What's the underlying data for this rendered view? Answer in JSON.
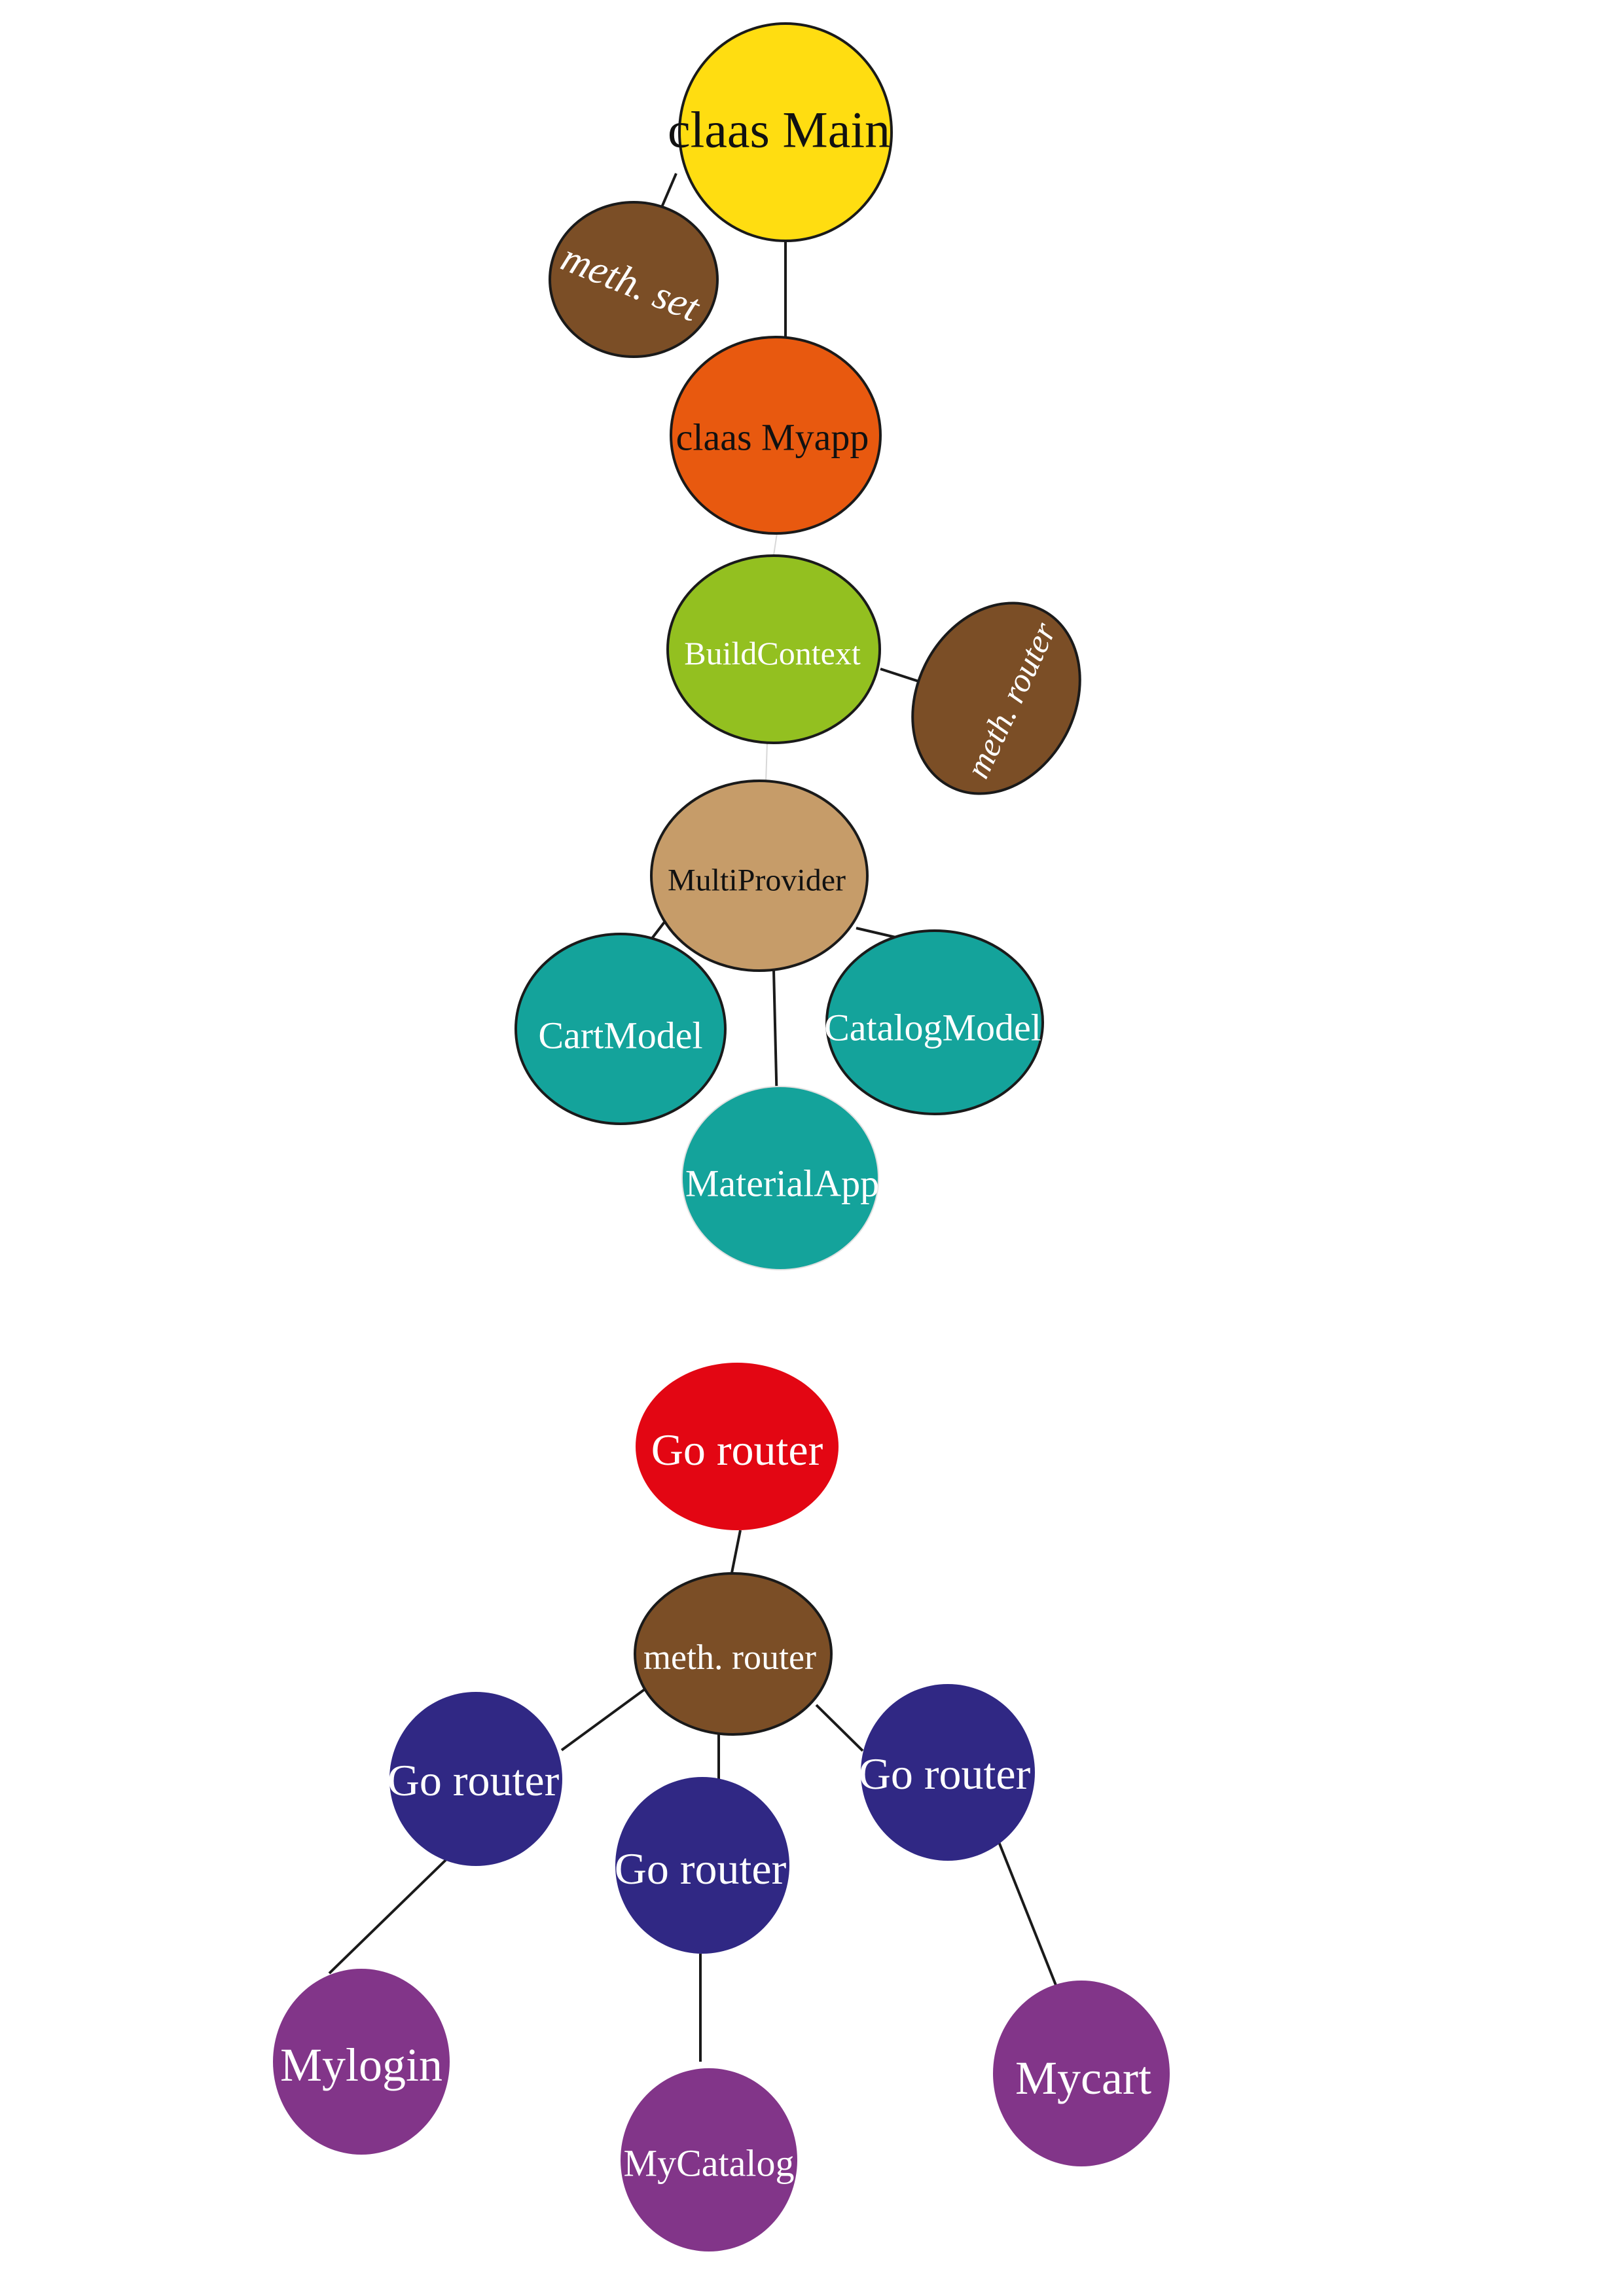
{
  "colors": {
    "main_yellow": "#FFDD11",
    "myapp_orange": "#E8590F",
    "buildcontext_green": "#93C020",
    "method_brown": "#7B4E26",
    "multiprovider_tan": "#C69C69",
    "model_teal": "#14A39B",
    "gorouter_red": "#E30613",
    "gorouter_navy": "#302884",
    "screen_purple": "#823589",
    "outline": "#1a1a1a"
  },
  "nodes": {
    "claas_main": "claas Main",
    "meth_set": "meth. set",
    "claas_myapp": "claas Myapp",
    "build_context": "BuildContext",
    "meth_router_side": "meth. router",
    "multi_provider": "MultiProvider",
    "cart_model": "CartModel",
    "catalog_model": "CatalogModel",
    "material_app": "MaterialApp",
    "go_router_root": "Go router",
    "meth_router_center": "meth. router",
    "go_router_left": "Go router",
    "go_router_middle": "Go router",
    "go_router_right": "Go router",
    "my_login": "Mylogin",
    "my_catalog": "MyCatalog",
    "my_cart": "Mycart"
  }
}
